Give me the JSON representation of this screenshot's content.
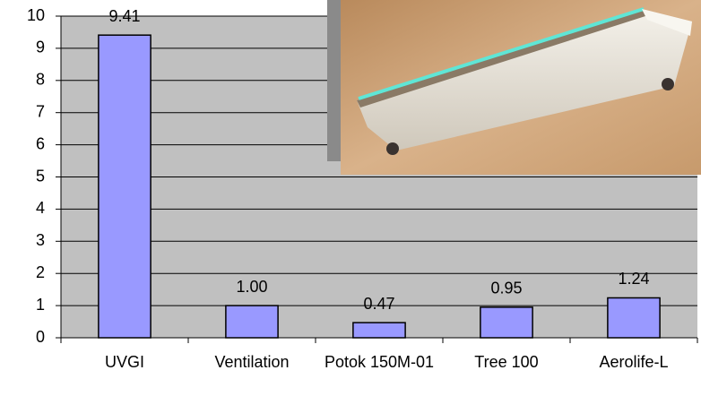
{
  "chart_data": {
    "type": "bar",
    "categories": [
      "UVGI",
      "Ventilation",
      "Potok 150M-01",
      "Tree 100",
      "Aerolife-L"
    ],
    "values": [
      9.41,
      1,
      0.47,
      0.95,
      1.24
    ],
    "value_labels": [
      "9.41",
      "1.00",
      "0.47",
      "0.95",
      "1.24"
    ],
    "color": "#9999ff",
    "ylim": [
      0,
      10
    ],
    "yticks": [
      0,
      1,
      2,
      3,
      4,
      5,
      6,
      7,
      8,
      9,
      10
    ],
    "grid": true
  }
}
